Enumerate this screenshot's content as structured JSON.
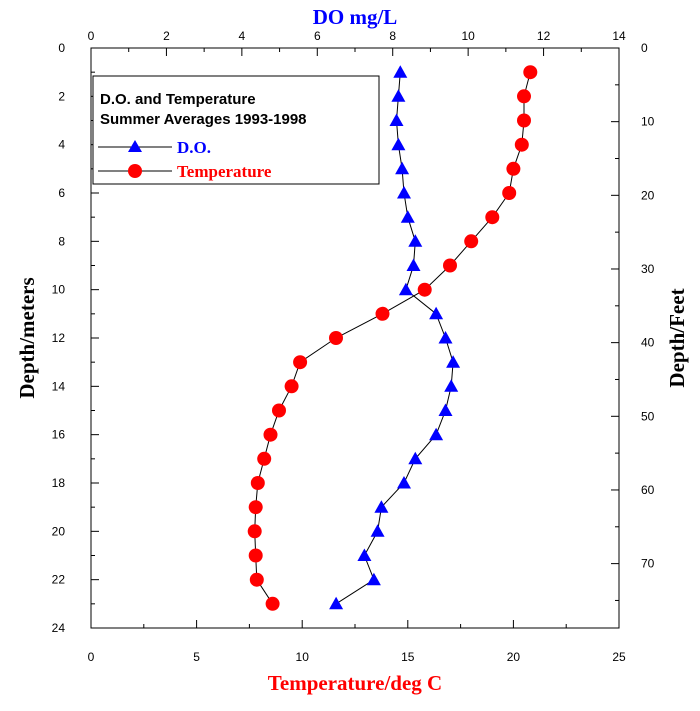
{
  "chart_data": {
    "type": "scatter",
    "title_lines": [
      "D.O. and Temperature",
      "Summer Averages 1993-1998"
    ],
    "axes": {
      "left": {
        "label": "Depth/meters",
        "range": [
          24,
          0
        ],
        "ticks": [
          0,
          2,
          4,
          6,
          8,
          10,
          12,
          14,
          16,
          18,
          20,
          22,
          24
        ],
        "inverted": true
      },
      "right": {
        "label": "Depth/Feet",
        "range": [
          78.74,
          0
        ],
        "ticks": [
          0,
          10,
          20,
          30,
          40,
          50,
          60,
          70
        ],
        "inverted": true
      },
      "top": {
        "label": "DO mg/L",
        "range": [
          0,
          14
        ],
        "ticks": [
          0,
          2,
          4,
          6,
          8,
          10,
          12,
          14
        ]
      },
      "bottom": {
        "label": "Temperature/deg C",
        "range": [
          0,
          25
        ],
        "ticks": [
          0,
          5,
          10,
          15,
          20,
          25
        ]
      }
    },
    "grid": false,
    "legend_position": "top-left",
    "series": [
      {
        "name": "D.O.",
        "axis": "top",
        "color": "#0000ff",
        "marker": "triangle",
        "points": [
          {
            "depth": 1,
            "value": 8.2
          },
          {
            "depth": 2,
            "value": 8.15
          },
          {
            "depth": 3,
            "value": 8.1
          },
          {
            "depth": 4,
            "value": 8.15
          },
          {
            "depth": 5,
            "value": 8.25
          },
          {
            "depth": 6,
            "value": 8.3
          },
          {
            "depth": 7,
            "value": 8.4
          },
          {
            "depth": 8,
            "value": 8.6
          },
          {
            "depth": 9,
            "value": 8.55
          },
          {
            "depth": 10,
            "value": 8.35
          },
          {
            "depth": 11,
            "value": 9.15
          },
          {
            "depth": 12,
            "value": 9.4
          },
          {
            "depth": 13,
            "value": 9.6
          },
          {
            "depth": 14,
            "value": 9.55
          },
          {
            "depth": 15,
            "value": 9.4
          },
          {
            "depth": 16,
            "value": 9.15
          },
          {
            "depth": 17,
            "value": 8.6
          },
          {
            "depth": 18,
            "value": 8.3
          },
          {
            "depth": 19,
            "value": 7.7
          },
          {
            "depth": 20,
            "value": 7.6
          },
          {
            "depth": 21,
            "value": 7.25
          },
          {
            "depth": 22,
            "value": 7.5
          },
          {
            "depth": 23,
            "value": 6.5
          }
        ]
      },
      {
        "name": "Temperature",
        "axis": "bottom",
        "color": "#ff0000",
        "marker": "circle",
        "points": [
          {
            "depth": 1,
            "value": 20.8
          },
          {
            "depth": 2,
            "value": 20.5
          },
          {
            "depth": 3,
            "value": 20.5
          },
          {
            "depth": 4,
            "value": 20.4
          },
          {
            "depth": 5,
            "value": 20.0
          },
          {
            "depth": 6,
            "value": 19.8
          },
          {
            "depth": 7,
            "value": 19.0
          },
          {
            "depth": 8,
            "value": 18.0
          },
          {
            "depth": 9,
            "value": 17.0
          },
          {
            "depth": 10,
            "value": 15.8
          },
          {
            "depth": 11,
            "value": 13.8
          },
          {
            "depth": 12,
            "value": 11.6
          },
          {
            "depth": 13,
            "value": 9.9
          },
          {
            "depth": 14,
            "value": 9.5
          },
          {
            "depth": 15,
            "value": 8.9
          },
          {
            "depth": 16,
            "value": 8.5
          },
          {
            "depth": 17,
            "value": 8.2
          },
          {
            "depth": 18,
            "value": 7.9
          },
          {
            "depth": 19,
            "value": 7.8
          },
          {
            "depth": 20,
            "value": 7.75
          },
          {
            "depth": 21,
            "value": 7.8
          },
          {
            "depth": 22,
            "value": 7.85
          },
          {
            "depth": 23,
            "value": 8.6
          }
        ]
      }
    ]
  }
}
